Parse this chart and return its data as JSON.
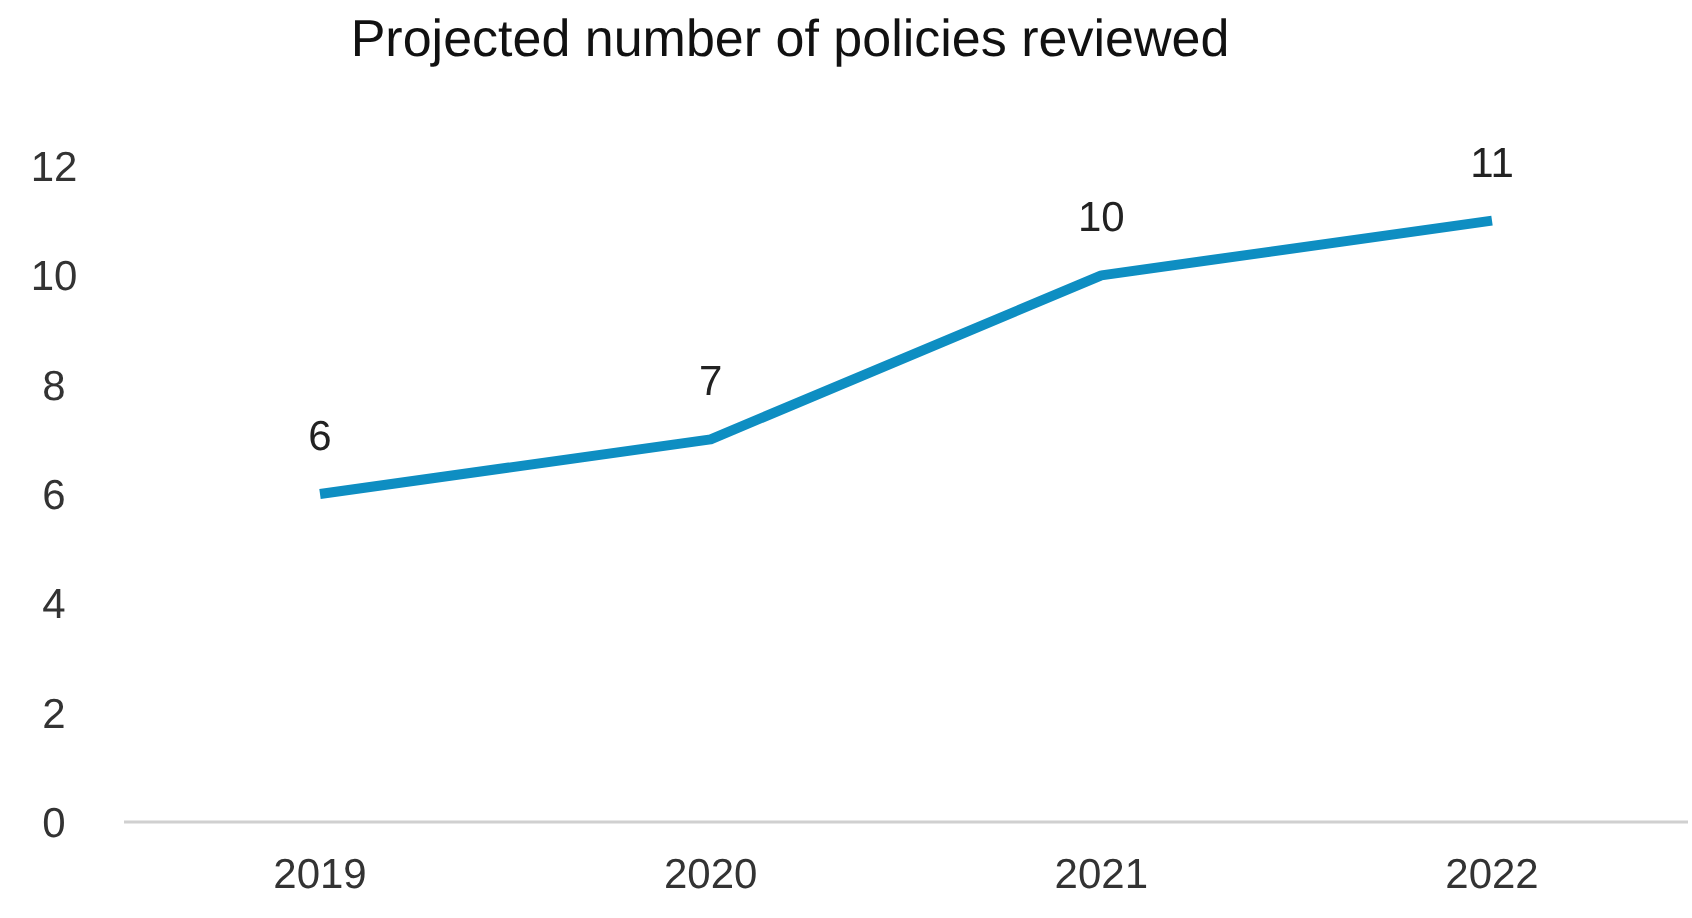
{
  "chart_data": {
    "type": "line",
    "title": "Projected number of policies reviewed",
    "categories": [
      "2019",
      "2020",
      "2021",
      "2022"
    ],
    "series": [
      {
        "color": "#0e8ec2",
        "values": [
          6,
          7,
          10,
          11
        ]
      }
    ],
    "ylim": [
      0,
      12
    ],
    "yticks": [
      0,
      2,
      4,
      6,
      8,
      10,
      12
    ],
    "data_labels": true,
    "marker": "none",
    "line_style": "solid"
  }
}
